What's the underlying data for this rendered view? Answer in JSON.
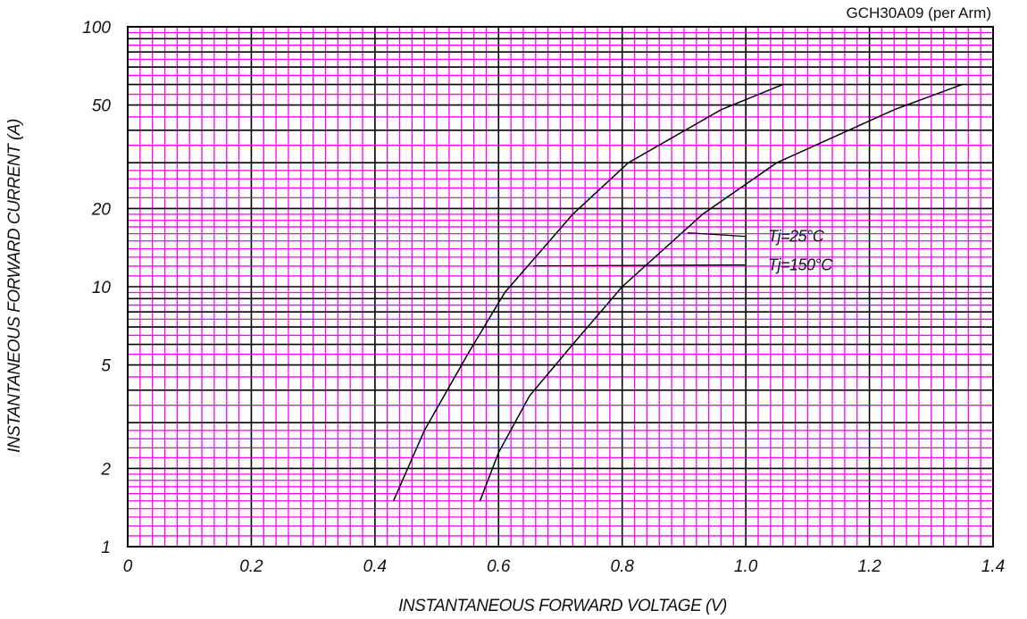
{
  "chart_data": {
    "type": "line",
    "title": "GCH30A09 (per Arm)",
    "xlabel": "INSTANTANEOUS FORWARD VOLTAGE (V)",
    "ylabel": "INSTANTANEOUS FORWARD CURRENT (A)",
    "xlim": [
      0,
      1.4
    ],
    "ylim": [
      1,
      100
    ],
    "y_scale": "log",
    "grid": true,
    "x_ticks": [
      "0",
      "0.2",
      "0.4",
      "0.6",
      "0.8",
      "1.0",
      "1.2",
      "1.4"
    ],
    "y_ticks": [
      "1",
      "2",
      "5",
      "10",
      "20",
      "50",
      "100"
    ],
    "series": [
      {
        "name": "Tj=25°C",
        "points": [
          [
            0.57,
            1.5
          ],
          [
            0.6,
            2.3
          ],
          [
            0.65,
            3.8
          ],
          [
            0.72,
            6.0
          ],
          [
            0.8,
            10.0
          ],
          [
            0.93,
            19.0
          ],
          [
            1.05,
            30.0
          ],
          [
            1.24,
            48.0
          ],
          [
            1.35,
            60.0
          ]
        ]
      },
      {
        "name": "Tj=150°C",
        "points": [
          [
            0.43,
            1.5
          ],
          [
            0.48,
            2.8
          ],
          [
            0.55,
            5.5
          ],
          [
            0.61,
            9.5
          ],
          [
            0.72,
            19.0
          ],
          [
            0.81,
            30.0
          ],
          [
            0.96,
            48.0
          ],
          [
            1.06,
            60.0
          ]
        ]
      }
    ],
    "annotations": [
      {
        "text": "Tj=25°C",
        "series": 0,
        "x": 0.9
      },
      {
        "text": "Tj=150°C",
        "series": 1,
        "x": 0.65
      }
    ],
    "colors": {
      "grid_minor": "#ff00ff",
      "grid_major": "#000000",
      "curve": "#000000"
    }
  }
}
